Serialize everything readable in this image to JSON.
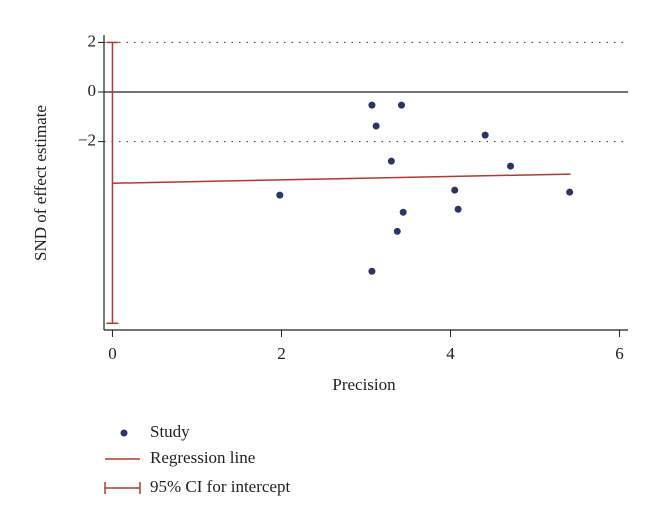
{
  "chart_data": {
    "type": "scatter",
    "xlabel": "Precision",
    "ylabel": "SND of effect estimate",
    "x": [
      3.07,
      3.42,
      3.12,
      4.41,
      3.3,
      4.71,
      4.05,
      5.41,
      1.98,
      4.09,
      3.44,
      3.37,
      3.07
    ],
    "values": [
      -0.53,
      -0.53,
      -1.37,
      -1.74,
      -2.79,
      -2.99,
      -3.96,
      -4.04,
      -4.16,
      -4.73,
      -4.85,
      -5.62,
      -7.23
    ],
    "name": "Study",
    "color": "#2c3566",
    "regression": {
      "name": "Regression line",
      "color": "#b23a32",
      "x": [
        0,
        5.42
      ],
      "values": [
        -3.68,
        -3.31
      ]
    },
    "ci": {
      "name": "95% CI for intercept",
      "color": "#b23a32",
      "x": 0,
      "lower": -9.33,
      "upper": 2.0
    },
    "xlim": [
      -0.1,
      6.1
    ],
    "xticks": [
      0,
      2,
      4,
      6
    ],
    "ylim": [
      -9.6,
      2.3
    ],
    "yticks": [
      2,
      0,
      {
        "value": -2,
        "label": "−2"
      }
    ],
    "grid": true,
    "grid_style": "dotted",
    "zero_line": true
  }
}
